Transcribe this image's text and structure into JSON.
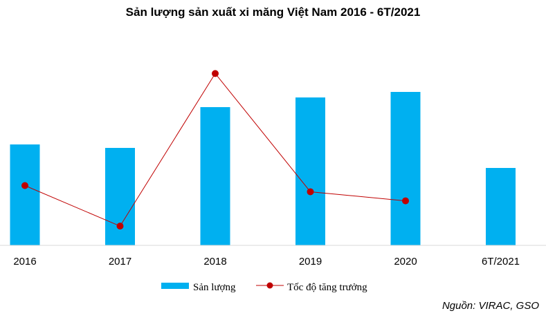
{
  "chart_data": {
    "type": "bar",
    "title": "Sản lượng sản xuất xi măng Việt Nam 2016 - 6T/2021",
    "categories": [
      "2016",
      "2017",
      "2018",
      "2019",
      "2020",
      "6T/2021"
    ],
    "series": [
      {
        "name": "Sản lượng",
        "kind": "bar",
        "color": "#00B0F0",
        "values": [
          146,
          141,
          200,
          214,
          222,
          112
        ]
      },
      {
        "name": "Tốc độ tăng trưởng",
        "kind": "line",
        "color": "#C00000",
        "values": [
          5.0,
          -3.5,
          28.5,
          3.7,
          1.8,
          null
        ]
      }
    ],
    "xlabel": "",
    "ylabel": "",
    "grid": false,
    "legend": "bottom"
  },
  "source": "Nguồn: VIRAC, GSO"
}
